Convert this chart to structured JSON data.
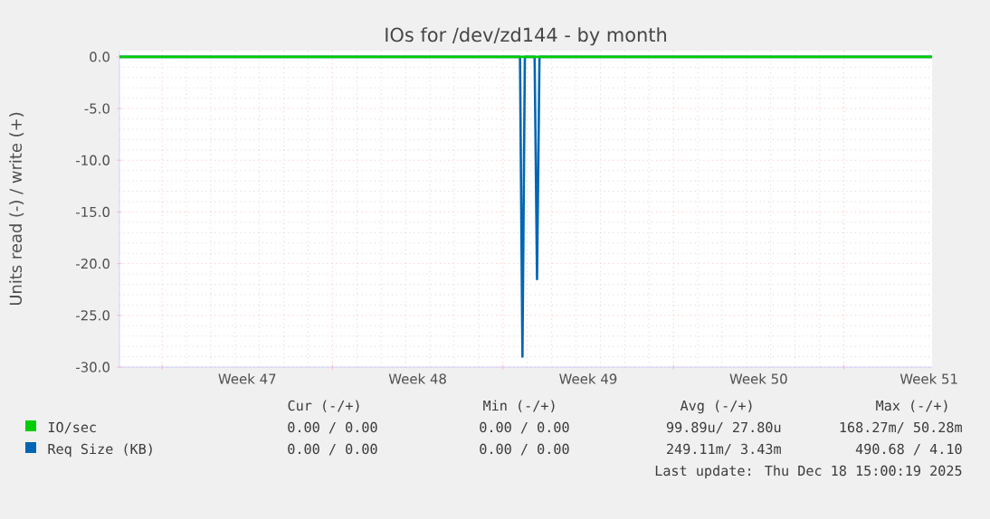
{
  "chart_data": {
    "type": "line",
    "title": "IOs for /dev/zd144 - by month",
    "ylabel": "Units read (-) / write (+)",
    "series": [
      {
        "name": "IO/sec",
        "color": "#00cc00",
        "x": [
          "2025-11-15T06:00",
          "2025-12-18T15:00"
        ],
        "values": [
          0,
          0
        ]
      },
      {
        "name": "Req Size (KB)",
        "color": "#0066b3",
        "x": [
          "2025-11-15T06:00",
          "2025-12-01T16:48",
          "2025-12-01T19:12",
          "2025-12-01T21:36",
          "2025-12-02T07:12",
          "2025-12-02T09:36",
          "2025-12-02T12:00",
          "2025-12-18T15:00"
        ],
        "values": [
          0,
          0,
          -29,
          0,
          0,
          -21.5,
          0,
          0
        ]
      }
    ],
    "xlim": [
      "2025-11-15T06:00",
      "2025-12-18T15:00"
    ],
    "xticks": [
      {
        "value": "2025-11-17",
        "label": null
      },
      {
        "value": "2025-11-20T12:00",
        "label": "Week 47"
      },
      {
        "value": "2025-11-24",
        "label": null
      },
      {
        "value": "2025-11-27T12:00",
        "label": "Week 48"
      },
      {
        "value": "2025-12-01",
        "label": null
      },
      {
        "value": "2025-12-04T12:00",
        "label": "Week 49"
      },
      {
        "value": "2025-12-08",
        "label": null
      },
      {
        "value": "2025-12-11T12:00",
        "label": "Week 50"
      },
      {
        "value": "2025-12-15",
        "label": null
      },
      {
        "value": "2025-12-18T12:00",
        "label": "Week 51"
      }
    ],
    "ylim": [
      -30,
      0.6
    ],
    "yticks": [
      {
        "value": -30,
        "label": "-30.0"
      },
      {
        "value": -25,
        "label": "-25.0"
      },
      {
        "value": -20,
        "label": "-20.0"
      },
      {
        "value": -15,
        "label": "-15.0"
      },
      {
        "value": -10,
        "label": "-10.0"
      },
      {
        "value": -5,
        "label": "-5.0"
      },
      {
        "value": 0,
        "label": "0.0"
      }
    ],
    "grid": true,
    "legend": "bottom",
    "annotations": [
      "Cur (-/+)",
      "Min (-/+)",
      "Avg (-/+)",
      "Max (-/+)",
      "0.00 /  0.00",
      "0.00 /  0.00",
      "99.89u/ 27.80u",
      "168.27m/ 50.28m",
      "0.00 /  0.00",
      "0.00 /  0.00",
      "249.11m/  3.43m",
      "490.68 /  4.10",
      "Last update: Thu Dec 18 15:00:19 2025"
    ]
  }
}
